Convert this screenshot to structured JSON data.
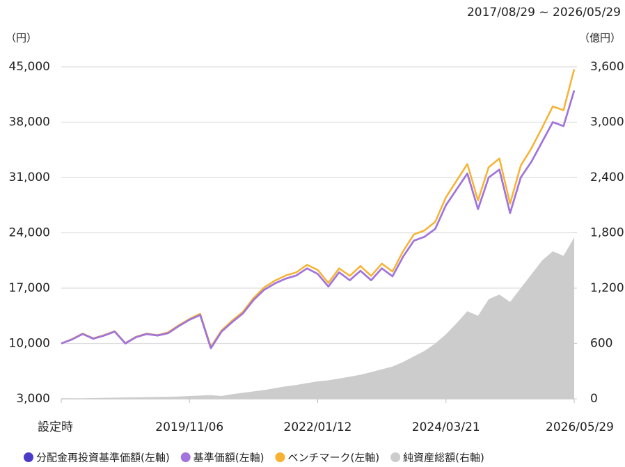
{
  "chart_data": {
    "type": "line",
    "subtitle": "2017/08/29 ~ 2026/05/29",
    "y_unit": "（円）",
    "y2_unit": "（億円）",
    "categories": [
      "設定時",
      null,
      null,
      null,
      null,
      null,
      null,
      null,
      null,
      null,
      null,
      null,
      "2019/11/06",
      null,
      null,
      null,
      null,
      null,
      null,
      null,
      null,
      null,
      null,
      null,
      "2022/01/12",
      null,
      null,
      null,
      null,
      null,
      null,
      null,
      null,
      null,
      null,
      null,
      "2024/03/21",
      null,
      null,
      null,
      null,
      null,
      null,
      null,
      null,
      null,
      null,
      null,
      "2026/05/29"
    ],
    "series": [
      {
        "name": "分配金再投資基準価額(左軸)",
        "color": "#4b3cc8",
        "values": [
          10000,
          10500,
          11200,
          10600,
          11000,
          11500,
          10000,
          10800,
          11200,
          11000,
          11300,
          12200,
          13000,
          13600,
          9400,
          11500,
          12700,
          13800,
          15500,
          16800,
          17600,
          18200,
          18600,
          19500,
          18800,
          17200,
          19000,
          18000,
          19200,
          18000,
          19500,
          18500,
          21000,
          23000,
          23500,
          24500,
          27500,
          29500,
          31500,
          27000,
          31000,
          32000,
          26500,
          31000,
          33000,
          35500,
          38000,
          37500,
          42000
        ]
      },
      {
        "name": "基準価額(左軸)",
        "color": "#a374dc",
        "values": [
          10000,
          10500,
          11200,
          10600,
          11000,
          11500,
          10000,
          10800,
          11200,
          11000,
          11300,
          12200,
          13000,
          13600,
          9400,
          11500,
          12700,
          13800,
          15500,
          16800,
          17600,
          18200,
          18600,
          19500,
          18800,
          17200,
          19000,
          18000,
          19200,
          18000,
          19500,
          18500,
          21000,
          23000,
          23500,
          24500,
          27500,
          29500,
          31500,
          27000,
          31000,
          32000,
          26500,
          31000,
          33000,
          35500,
          38000,
          37500,
          42000
        ]
      },
      {
        "name": "ベンチマーク(左軸)",
        "color": "#f7b232",
        "values": [
          10000,
          10550,
          11250,
          10650,
          11050,
          11550,
          10050,
          10850,
          11250,
          11050,
          11400,
          12300,
          13100,
          13750,
          9550,
          11650,
          12900,
          14000,
          15750,
          17100,
          17950,
          18600,
          19000,
          19950,
          19300,
          17650,
          19500,
          18550,
          19800,
          18550,
          20100,
          19100,
          21700,
          23800,
          24300,
          25400,
          28500,
          30600,
          32700,
          28100,
          32300,
          33400,
          27700,
          32500,
          34700,
          37300,
          40000,
          39500,
          44700
        ]
      },
      {
        "name": "純資産総額(右軸)",
        "color": "#cccccc",
        "axis": "y2",
        "values": [
          0,
          2,
          5,
          8,
          10,
          12,
          14,
          16,
          18,
          20,
          22,
          25,
          30,
          35,
          40,
          30,
          50,
          65,
          80,
          95,
          115,
          135,
          150,
          170,
          190,
          200,
          220,
          240,
          260,
          290,
          320,
          350,
          400,
          460,
          520,
          600,
          700,
          820,
          950,
          900,
          1080,
          1130,
          1050,
          1200,
          1350,
          1500,
          1600,
          1550,
          1750
        ]
      }
    ],
    "ylim": [
      3000,
      45000
    ],
    "yticks": [
      {
        "value": 3000,
        "label": "3,000"
      },
      {
        "value": 10000,
        "label": "10,000"
      },
      {
        "value": 17000,
        "label": "17,000"
      },
      {
        "value": 24000,
        "label": "24,000"
      },
      {
        "value": 31000,
        "label": "31,000"
      },
      {
        "value": 38000,
        "label": "38,000"
      },
      {
        "value": 45000,
        "label": "45,000"
      }
    ],
    "y2lim": [
      0,
      3600
    ],
    "y2ticks": [
      0,
      600,
      {
        "value": 1200,
        "label": "1,200"
      },
      {
        "value": 1800,
        "label": "1,800"
      },
      {
        "value": 2400,
        "label": "2,400"
      },
      {
        "value": 3000,
        "label": "3,000"
      },
      {
        "value": 3600,
        "label": "3,600"
      }
    ],
    "grid": true
  }
}
